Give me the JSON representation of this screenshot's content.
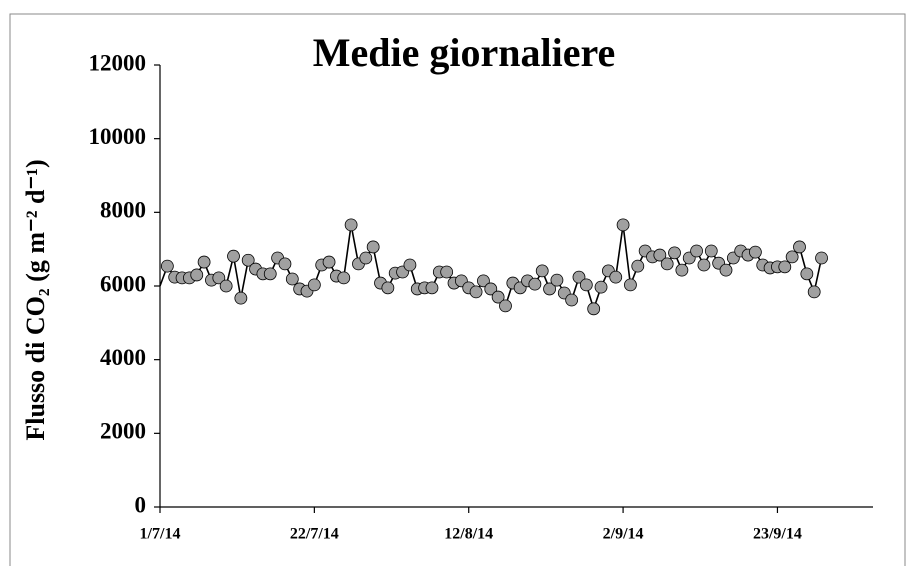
{
  "chart_data": {
    "type": "line",
    "title": "Medie giornaliere",
    "y_label": "Flusso di CO₂ (g m⁻² d⁻¹)",
    "x": [
      "1/7/14",
      "2/7/14",
      "3/7/14",
      "4/7/14",
      "5/7/14",
      "6/7/14",
      "7/7/14",
      "8/7/14",
      "9/7/14",
      "10/7/14",
      "11/7/14",
      "12/7/14",
      "13/7/14",
      "14/7/14",
      "15/7/14",
      "16/7/14",
      "17/7/14",
      "18/7/14",
      "19/7/14",
      "20/7/14",
      "21/7/14",
      "22/7/14",
      "23/7/14",
      "24/7/14",
      "25/7/14",
      "26/7/14",
      "27/7/14",
      "28/7/14",
      "29/7/14",
      "30/7/14",
      "31/7/14",
      "1/8/14",
      "2/8/14",
      "3/8/14",
      "4/8/14",
      "5/8/14",
      "6/8/14",
      "7/8/14",
      "8/8/14",
      "9/8/14",
      "10/8/14",
      "11/8/14",
      "12/8/14",
      "13/8/14",
      "14/8/14",
      "15/8/14",
      "16/8/14",
      "17/8/14",
      "18/8/14",
      "19/8/14",
      "20/8/14",
      "21/8/14",
      "22/8/14",
      "23/8/14",
      "24/8/14",
      "25/8/14",
      "26/8/14",
      "27/8/14",
      "28/8/14",
      "29/8/14",
      "30/8/14",
      "31/8/14",
      "1/9/14",
      "2/9/14",
      "3/9/14",
      "4/9/14",
      "5/9/14",
      "6/9/14",
      "7/9/14",
      "8/9/14",
      "9/9/14",
      "10/9/14",
      "11/9/14",
      "12/9/14",
      "13/9/14",
      "14/9/14",
      "15/9/14",
      "16/9/14",
      "17/9/14",
      "18/9/14",
      "19/9/14",
      "20/9/14",
      "21/9/14",
      "22/9/14",
      "23/9/14",
      "24/9/14",
      "25/9/14",
      "26/9/14",
      "27/9/14",
      "28/9/14",
      "29/9/14"
    ],
    "series": [
      {
        "color": "#a0a0a0",
        "line_color": "#000000",
        "values": [
          6000,
          6540,
          6240,
          6220,
          6220,
          6300,
          6650,
          6160,
          6220,
          6000,
          6810,
          5670,
          6700,
          6460,
          6330,
          6330,
          6760,
          6600,
          6190,
          5920,
          5860,
          6030,
          6570,
          6650,
          6270,
          6220,
          7660,
          6600,
          6760,
          7060,
          6080,
          5950,
          6350,
          6380,
          6570,
          5920,
          5950,
          5950,
          6380,
          6380,
          6080,
          6140,
          5950,
          5840,
          6140,
          5920,
          5700,
          5460,
          6080,
          5950,
          6140,
          6050,
          6410,
          5920,
          6160,
          5810,
          5620,
          6240,
          6030,
          5380,
          5970,
          6410,
          6240,
          7660,
          6030,
          6540,
          6950,
          6790,
          6840,
          6600,
          6900,
          6430,
          6760,
          6950,
          6570,
          6950,
          6620,
          6430,
          6760,
          6950,
          6840,
          6920,
          6570,
          6490,
          6520,
          6520,
          6790,
          7060,
          6330,
          5840,
          6760
        ]
      }
    ],
    "xlim": [
      "1/7/14",
      "6/10/14"
    ],
    "xticks": [
      "1/7/14",
      "22/7/14",
      "12/8/14",
      "2/9/14",
      "23/9/14"
    ],
    "ylim": [
      0,
      12000
    ],
    "yticks": [
      0,
      2000,
      4000,
      6000,
      8000,
      10000,
      12000
    ],
    "grid": false
  }
}
